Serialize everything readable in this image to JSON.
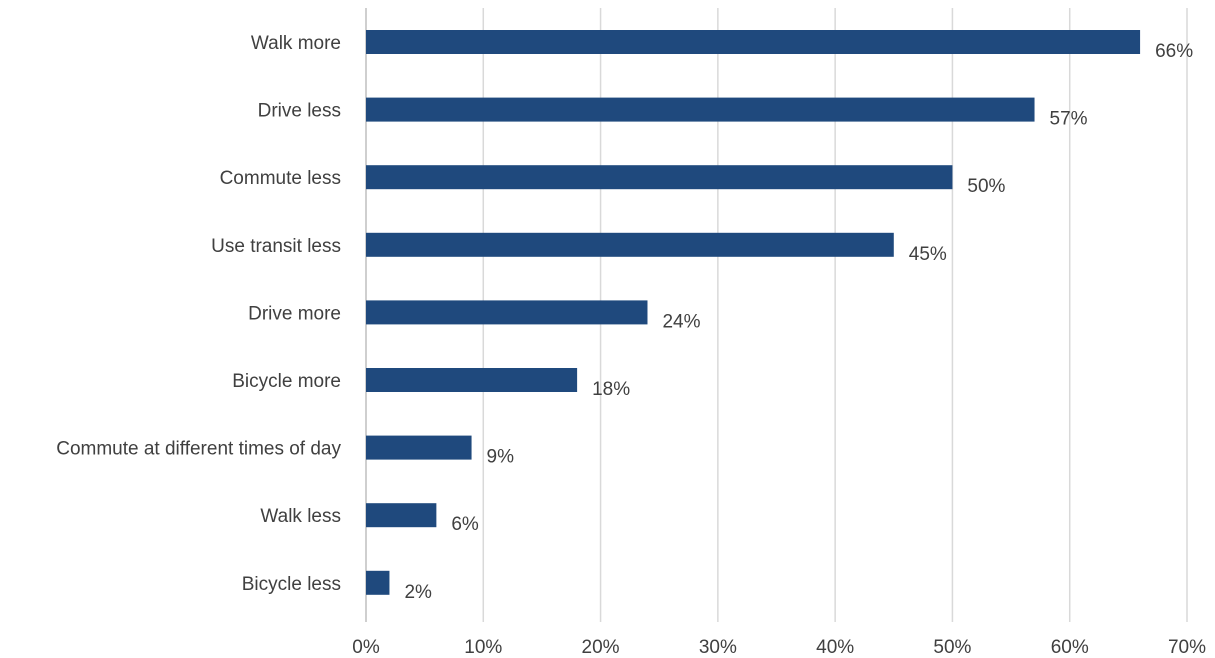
{
  "colors": {
    "bar": "#1f497d",
    "grid": "#d9d9d9",
    "text": "#404040"
  },
  "chart_data": {
    "type": "bar",
    "orientation": "horizontal",
    "categories": [
      "Walk more",
      "Drive less",
      "Commute less",
      "Use transit less",
      "Drive more",
      "Bicycle more",
      "Commute at different times of day",
      "Walk less",
      "Bicycle less"
    ],
    "values": [
      66,
      57,
      50,
      45,
      24,
      18,
      9,
      6,
      2
    ],
    "value_labels": [
      "66%",
      "57%",
      "50%",
      "45%",
      "24%",
      "18%",
      "9%",
      "6%",
      "2%"
    ],
    "xlim": [
      0,
      70
    ],
    "xticks": [
      0,
      10,
      20,
      30,
      40,
      50,
      60,
      70
    ],
    "xtick_labels": [
      "0%",
      "10%",
      "20%",
      "30%",
      "40%",
      "50%",
      "60%",
      "70%"
    ],
    "grid": true,
    "legend": "none"
  }
}
